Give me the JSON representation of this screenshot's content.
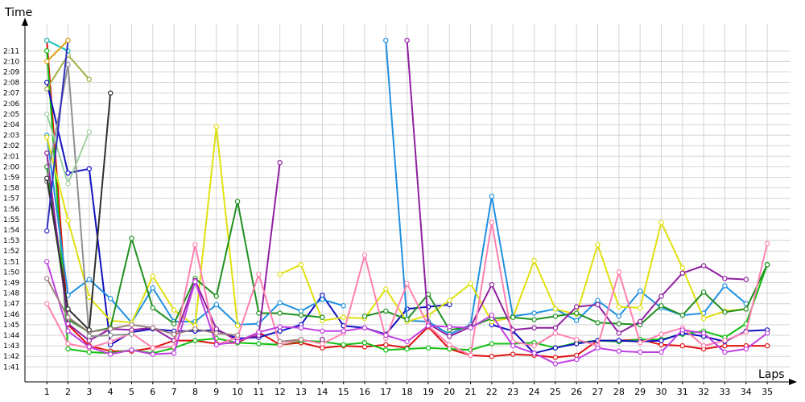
{
  "chart_data": {
    "type": "line",
    "ylabel": "Time",
    "xlabel": "Laps",
    "x": [
      1,
      2,
      3,
      4,
      5,
      6,
      7,
      8,
      9,
      10,
      11,
      12,
      13,
      14,
      15,
      16,
      17,
      18,
      19,
      20,
      21,
      22,
      23,
      24,
      25,
      26,
      27,
      28,
      29,
      30,
      31,
      32,
      33,
      34,
      35
    ],
    "x_tick_labels": [
      "1",
      "2",
      "3",
      "4",
      "5",
      "6",
      "7",
      "8",
      "9",
      "10",
      "11",
      "12",
      "13",
      "14",
      "15",
      "16",
      "17",
      "18",
      "19",
      "20",
      "21",
      "22",
      "23",
      "24",
      "25",
      "26",
      "27",
      "28",
      "29",
      "30",
      "31",
      "32",
      "33",
      "34",
      "35"
    ],
    "y_tick_labels": [
      "1:41",
      "1:42",
      "1:43",
      "1:44",
      "1:45",
      "1:46",
      "1:47",
      "1:48",
      "1:49",
      "1:50",
      "1:51",
      "1:52",
      "1:53",
      "1:54",
      "1:55",
      "1:56",
      "1:57",
      "1:58",
      "1:59",
      "2:00",
      "2:01",
      "2:02",
      "2:03",
      "2:04",
      "2:05",
      "2:06",
      "2:07",
      "2:08",
      "2:09",
      "2:10",
      "2:11"
    ],
    "y_unit": "seconds",
    "ylim": [
      100,
      132
    ],
    "grid": true,
    "legend": "none",
    "series": [
      {
        "color": "#e01010",
        "values": [
          132,
          105,
          103,
          102.5,
          102.5,
          102.8,
          103.5,
          103.5,
          103.2,
          103.3,
          104.3,
          103.1,
          103.3,
          102.8,
          103,
          102.9,
          103.1,
          102.8,
          104.8,
          102.7,
          102.1,
          102,
          102.2,
          102.1,
          101.9,
          102.1,
          103.5,
          103.5,
          103.6,
          103.1,
          103,
          102.7,
          103,
          103,
          103
        ]
      },
      {
        "color": "#10c010",
        "values": [
          131,
          102.7,
          102.4,
          102.3,
          102.6,
          102.3,
          102.8,
          103.5,
          103.7,
          103.3,
          103.2,
          103.1,
          103.5,
          103.4,
          103.1,
          103.3,
          102.6,
          102.7,
          102.8,
          102.7,
          102.6,
          103.2,
          103.2,
          103.3,
          102.8,
          103.3,
          103.5,
          103.4,
          103.6,
          103.6,
          104.1,
          104.4,
          103.8,
          105.1,
          110.7
        ]
      },
      {
        "color": "#1010c0",
        "values": [
          128,
          119.4,
          119.8,
          103.1,
          104.3,
          104.6,
          104.4,
          104.4,
          104.5,
          103.7,
          103.8,
          104.4,
          105,
          107.8,
          104.9,
          104.7,
          104.1,
          106.5,
          106.7,
          106.9,
          null,
          105,
          104.4,
          102.3,
          102.8,
          103.2,
          103.5,
          103.5,
          103.4,
          103.5,
          104.2,
          103.9,
          103.4,
          104.4,
          104.5
        ]
      },
      {
        "color": "#2090e0",
        "values": [
          123,
          107.8,
          109.3,
          107.5,
          105.2,
          108.5,
          105.3,
          105.3,
          106.9,
          105,
          105.1,
          107.1,
          106.3,
          107.4,
          106.8,
          null,
          132,
          105.4,
          105.3,
          104.1,
          105,
          117.2,
          105.8,
          106.1,
          106.5,
          105.4,
          107.3,
          105.8,
          108.2,
          106.6,
          105.9,
          106.1,
          108.7,
          107,
          null
        ]
      },
      {
        "color": "#e0e010",
        "values": [
          122.8,
          114.9,
          107.6,
          105.4,
          105.2,
          109.6,
          106.4,
          104.9,
          123.8,
          104.9,
          null,
          109.8,
          110.7,
          105.4,
          105.7,
          105.6,
          108.4,
          105.3,
          105.9,
          107.3,
          108.9,
          105.3,
          105.7,
          111.1,
          106.5,
          106,
          112.6,
          106.7,
          106.6,
          114.7,
          110.4,
          105.6,
          106.3,
          106.5,
          null
        ]
      },
      {
        "color": "#209020",
        "values": [
          120,
          105.5,
          104.3,
          104.7,
          113.2,
          106.6,
          105.1,
          109.4,
          107.7,
          116.7,
          106.1,
          106.1,
          105.9,
          105.7,
          null,
          105.8,
          106.3,
          105.5,
          107.9,
          104.5,
          104.8,
          105.6,
          105.7,
          105.5,
          105.8,
          106.1,
          105.2,
          105.1,
          105,
          106.8,
          105.9,
          108.1,
          106.2,
          106.5,
          110.7
        ]
      },
      {
        "color": "#9020a0",
        "values": [
          121.3,
          105.1,
          103.5,
          104.6,
          104.5,
          104.7,
          103.5,
          109.2,
          104.6,
          103.5,
          104,
          120.4,
          null,
          103.6,
          null,
          104.7,
          null,
          132,
          105.1,
          103.9,
          104.8,
          108.8,
          104.5,
          104.7,
          104.7,
          106.7,
          106.9,
          104.2,
          105.3,
          107.7,
          109.9,
          110.6,
          109.4,
          109.3,
          null
        ]
      },
      {
        "color": "#ff80b0",
        "values": [
          107,
          103.2,
          102.8,
          103.4,
          104.2,
          102.8,
          102.9,
          112.6,
          103.1,
          103.8,
          109.8,
          103.1,
          103.6,
          103.2,
          104.2,
          111.6,
          103.7,
          108.9,
          104.9,
          103.1,
          102.1,
          114.7,
          103.4,
          103,
          104.2,
          103.6,
          103,
          110,
          103.3,
          104.1,
          104.7,
          103,
          103.5,
          104.3,
          112.7
        ]
      },
      {
        "color": "#c040e0",
        "values": [
          111,
          104.4,
          102.9,
          102.2,
          102.6,
          102.2,
          102.3,
          109.1,
          103.1,
          103.4,
          104.3,
          104.8,
          104.7,
          104.4,
          104.4,
          104.7,
          104,
          103.4,
          104.9,
          104.8,
          104.7,
          105.9,
          103,
          102.3,
          101.3,
          101.7,
          102.8,
          102.5,
          102.4,
          102.4,
          104.5,
          104.2,
          102.4,
          102.7,
          104.2
        ]
      },
      {
        "color": "#a08080",
        "values": [
          109.4,
          105.7,
          104.3,
          104.6,
          105,
          104.7,
          104.1,
          104.6,
          104.2,
          104,
          null,
          103.4,
          103.6,
          null,
          null,
          null,
          null,
          null,
          null,
          null,
          null,
          null,
          null,
          null,
          null,
          null,
          null,
          null,
          null,
          null,
          null,
          null,
          null,
          null,
          null
        ]
      },
      {
        "color": "#909090",
        "values": [
          118.6,
          129.7,
          103.9,
          104,
          104.1,
          null,
          null,
          null,
          null,
          null,
          null,
          null,
          null,
          null,
          null,
          null,
          null,
          null,
          null,
          null,
          null,
          null,
          null,
          null,
          null,
          null,
          null,
          null,
          null,
          null,
          null,
          null,
          null,
          null,
          null
        ]
      },
      {
        "color": "#303030",
        "values": [
          118.9,
          106.5,
          104.5,
          127,
          null,
          null,
          null,
          null,
          null,
          null,
          null,
          null,
          null,
          null,
          null,
          null,
          null,
          null,
          null,
          null,
          null,
          null,
          null,
          null,
          null,
          null,
          null,
          null,
          null,
          null,
          null,
          null,
          null,
          null,
          null
        ]
      },
      {
        "color": "#a0b040",
        "values": [
          127.4,
          130.6,
          128.3,
          null,
          null,
          null,
          null,
          null,
          null,
          null,
          null,
          null,
          null,
          null,
          null,
          null,
          null,
          null,
          null,
          null,
          null,
          null,
          null,
          null,
          null,
          null,
          null,
          null,
          null,
          null,
          null,
          null,
          null,
          null,
          null
        ]
      },
      {
        "color": "#a0d0a0",
        "values": [
          125,
          118.4,
          123.3,
          null,
          null,
          null,
          null,
          null,
          null,
          null,
          null,
          null,
          null,
          null,
          null,
          null,
          null,
          null,
          null,
          null,
          null,
          null,
          null,
          null,
          null,
          null,
          null,
          null,
          null,
          null,
          null,
          null,
          null,
          null,
          null
        ]
      },
      {
        "color": "#20c0c0",
        "values": [
          132,
          131,
          null,
          null,
          null,
          null,
          null,
          null,
          null,
          null,
          null,
          null,
          null,
          null,
          null,
          null,
          null,
          null,
          null,
          null,
          null,
          null,
          null,
          null,
          null,
          null,
          null,
          null,
          null,
          null,
          null,
          null,
          null,
          null,
          null
        ]
      },
      {
        "color": "#3030c0",
        "values": [
          113.9,
          132,
          null,
          null,
          null,
          null,
          null,
          null,
          null,
          null,
          null,
          null,
          null,
          null,
          null,
          null,
          null,
          null,
          null,
          null,
          null,
          null,
          null,
          null,
          null,
          null,
          null,
          null,
          null,
          null,
          null,
          null,
          null,
          null,
          null
        ]
      },
      {
        "color": "#e0a010",
        "values": [
          130,
          132,
          null,
          null,
          null,
          null,
          null,
          null,
          null,
          null,
          null,
          null,
          null,
          null,
          null,
          null,
          null,
          null,
          null,
          null,
          null,
          null,
          null,
          null,
          null,
          null,
          null,
          null,
          null,
          null,
          null,
          null,
          null,
          null,
          null
        ]
      }
    ]
  }
}
